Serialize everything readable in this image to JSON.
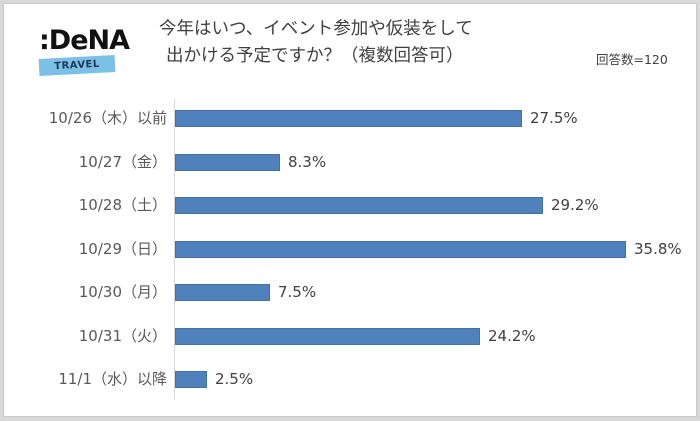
{
  "logo": {
    "brand": ":DeNA",
    "sub": "TRAVEL"
  },
  "header": {
    "title_line1": "今年はいつ、イベント参加や仮装をして",
    "title_line2": "出かける予定ですか？（複数回答可）",
    "respondents": "回答数=120"
  },
  "colors": {
    "bar": "#4f81bd",
    "bar_border": "#41719c",
    "text": "#404040",
    "axis": "#d9d9d9"
  },
  "chart_data": {
    "type": "bar",
    "orientation": "horizontal",
    "title": "今年はいつ、イベント参加や仮装をして出かける予定ですか？（複数回答可）",
    "subtitle": "回答数=120",
    "categories": [
      "10/26（木）以前",
      "10/27（金）",
      "10/28（土）",
      "10/29（日）",
      "10/30（月）",
      "10/31（火）",
      "11/1（水）以降"
    ],
    "values": [
      27.5,
      8.3,
      29.2,
      35.8,
      7.5,
      24.2,
      2.5
    ],
    "labels": [
      "27.5%",
      "8.3%",
      "29.2%",
      "35.8%",
      "7.5%",
      "24.2%",
      "2.5%"
    ],
    "unit": "%",
    "xlabel": "",
    "ylabel": "",
    "xlim": [
      0,
      40
    ],
    "grid": false,
    "legend": null
  }
}
